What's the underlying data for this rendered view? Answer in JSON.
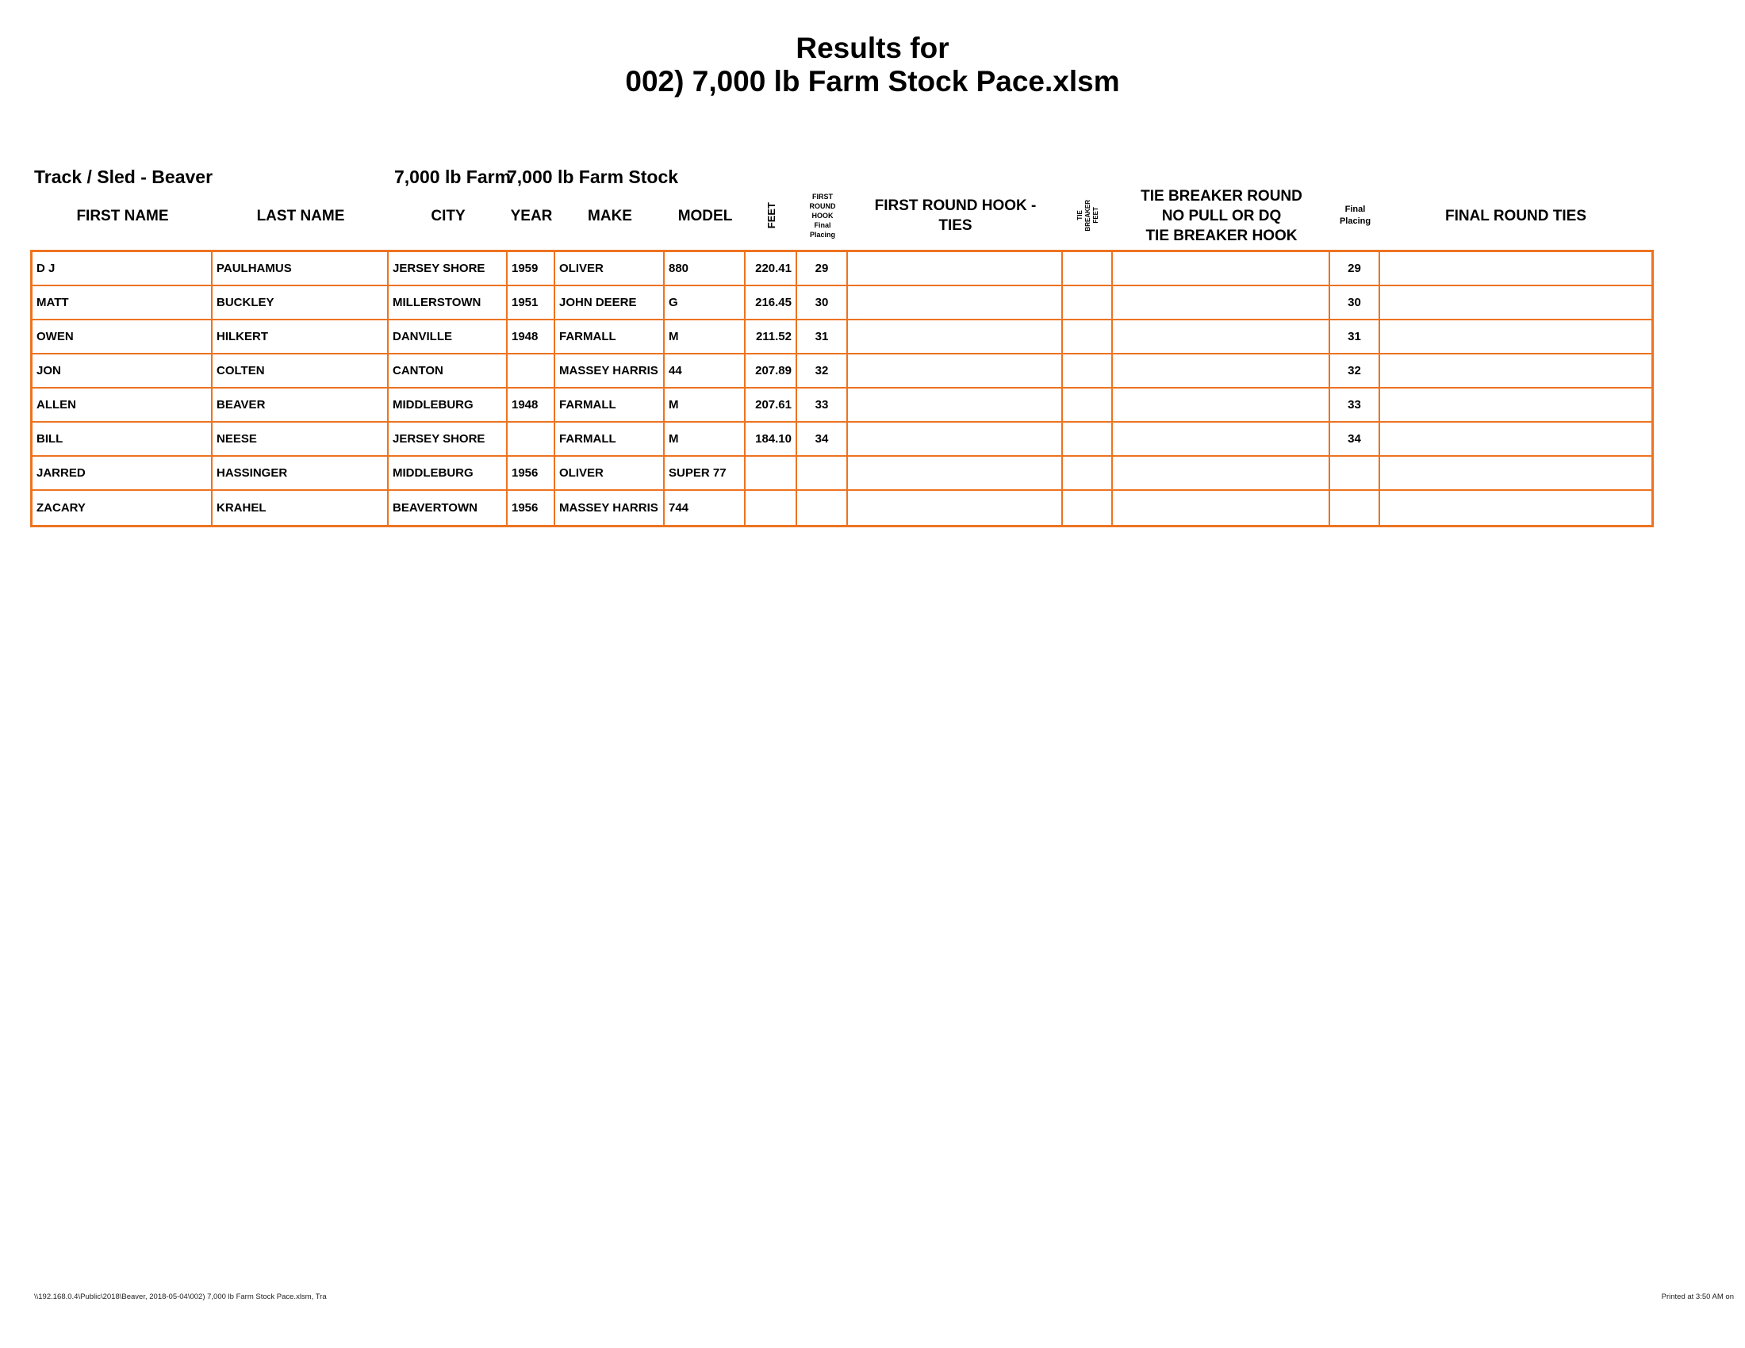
{
  "header": {
    "title_line1": "Results for",
    "title_line2": "002) 7,000 lb Farm Stock Pace.xlsm"
  },
  "meta": {
    "track_sled": "Track / Sled - Beaver",
    "class_short": "7,000 lb Farm",
    "class_full": "7,000 lb Farm Stock"
  },
  "table": {
    "columns": [
      {
        "key": "first_name",
        "label": [
          "FIRST NAME"
        ]
      },
      {
        "key": "last_name",
        "label": [
          "LAST NAME"
        ]
      },
      {
        "key": "city",
        "label": [
          "CITY"
        ]
      },
      {
        "key": "year",
        "label": [
          "YEAR"
        ]
      },
      {
        "key": "make",
        "label": [
          "MAKE"
        ]
      },
      {
        "key": "model",
        "label": [
          "MODEL"
        ]
      },
      {
        "key": "feet",
        "label": [
          "FEET"
        ]
      },
      {
        "key": "frh_placing",
        "label": [
          "FIRST",
          "ROUND",
          "HOOK",
          "Final",
          "Placing"
        ]
      },
      {
        "key": "frh_ties",
        "label": [
          "FIRST ROUND HOOK -",
          "TIES"
        ]
      },
      {
        "key": "tb_feet",
        "label": [
          "TIE",
          "BREAKER",
          "FEET"
        ]
      },
      {
        "key": "tb_round",
        "label": [
          "TIE BREAKER ROUND",
          "NO PULL OR DQ",
          "TIE BREAKER HOOK"
        ]
      },
      {
        "key": "final_placing",
        "label": [
          "Final",
          "Placing"
        ]
      },
      {
        "key": "final_round_ties",
        "label": [
          "FINAL ROUND TIES"
        ]
      }
    ],
    "rows": [
      {
        "first_name": "D J",
        "last_name": "PAULHAMUS",
        "city": "JERSEY SHORE",
        "year": "1959",
        "make": "OLIVER",
        "model": "880",
        "feet": "220.41",
        "frh_placing": "29",
        "frh_ties": "",
        "tb_feet": "",
        "tb_round": "",
        "final_placing": "29",
        "final_round_ties": ""
      },
      {
        "first_name": "MATT",
        "last_name": "BUCKLEY",
        "city": "MILLERSTOWN",
        "year": "1951",
        "make": "JOHN DEERE",
        "model": "G",
        "feet": "216.45",
        "frh_placing": "30",
        "frh_ties": "",
        "tb_feet": "",
        "tb_round": "",
        "final_placing": "30",
        "final_round_ties": ""
      },
      {
        "first_name": "OWEN",
        "last_name": "HILKERT",
        "city": "DANVILLE",
        "year": "1948",
        "make": "FARMALL",
        "model": "M",
        "feet": "211.52",
        "frh_placing": "31",
        "frh_ties": "",
        "tb_feet": "",
        "tb_round": "",
        "final_placing": "31",
        "final_round_ties": ""
      },
      {
        "first_name": "JON",
        "last_name": "COLTEN",
        "city": "CANTON",
        "year": "",
        "make": "MASSEY HARRIS",
        "model": "44",
        "feet": "207.89",
        "frh_placing": "32",
        "frh_ties": "",
        "tb_feet": "",
        "tb_round": "",
        "final_placing": "32",
        "final_round_ties": ""
      },
      {
        "first_name": "ALLEN",
        "last_name": "BEAVER",
        "city": "MIDDLEBURG",
        "year": "1948",
        "make": "FARMALL",
        "model": "M",
        "feet": "207.61",
        "frh_placing": "33",
        "frh_ties": "",
        "tb_feet": "",
        "tb_round": "",
        "final_placing": "33",
        "final_round_ties": ""
      },
      {
        "first_name": "BILL",
        "last_name": "NEESE",
        "city": "JERSEY SHORE",
        "year": "",
        "make": "FARMALL",
        "model": "M",
        "feet": "184.10",
        "frh_placing": "34",
        "frh_ties": "",
        "tb_feet": "",
        "tb_round": "",
        "final_placing": "34",
        "final_round_ties": ""
      },
      {
        "first_name": "JARRED",
        "last_name": "HASSINGER",
        "city": "MIDDLEBURG",
        "year": "1956",
        "make": "OLIVER",
        "model": "SUPER 77",
        "feet": "",
        "frh_placing": "",
        "frh_ties": "",
        "tb_feet": "",
        "tb_round": "",
        "final_placing": "",
        "final_round_ties": ""
      },
      {
        "first_name": "ZACARY",
        "last_name": "KRAHEL",
        "city": "BEAVERTOWN",
        "year": "1956",
        "make": "MASSEY HARRIS",
        "model": "744",
        "feet": "",
        "frh_placing": "",
        "frh_ties": "",
        "tb_feet": "",
        "tb_round": "",
        "final_placing": "",
        "final_round_ties": ""
      }
    ]
  },
  "footer": {
    "left": "\\\\192.168.0.4\\Public\\2018\\Beaver, 2018-05-04\\002) 7,000 lb Farm Stock Pace.xlsm, Tra",
    "right": "Printed at 3:50 AM on"
  },
  "colors": {
    "border_orange": "#ED7321"
  }
}
